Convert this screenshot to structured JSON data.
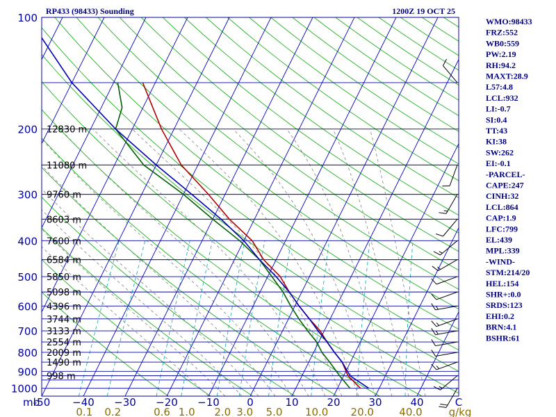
{
  "header": {
    "station": "RP433 (98433) Sounding",
    "time": "1200Z 19 OCT 25"
  },
  "colors": {
    "frame": "#0000a0",
    "isobar": "#0000a0",
    "isotherm": "#0000c0",
    "dry_adiabat": "#20b020",
    "mixing_ratio": "#20b0b0",
    "moist_adiabat": "#808080",
    "temperature": "#b00000",
    "dewpoint": "#006000",
    "parcel": "#0000b0",
    "text": "#000080",
    "mixing_label": "#8a6d00"
  },
  "chart_data": {
    "type": "line",
    "subtype": "skew-t log-p",
    "title": "RP433 (98433) Sounding",
    "subtitle": "1200Z 19 OCT 25",
    "ylabel": "mb",
    "xlabel": "C",
    "ylim": [
      1050,
      100
    ],
    "xlim": [
      -50,
      50
    ],
    "y_scale": "log",
    "pressure_ticks": [
      100,
      200,
      300,
      400,
      500,
      600,
      700,
      800,
      900,
      1000
    ],
    "temp_ticks": [
      -50,
      -40,
      -30,
      -20,
      -10,
      0,
      10,
      20,
      30,
      40
    ],
    "x_tick_labels": [
      "-50",
      "−40",
      "−30",
      "−20",
      "−10",
      "0",
      "10",
      "20",
      "30",
      "40",
      "C"
    ],
    "mixing_ratio_labels": [
      "0.1",
      "0.2",
      "0.6",
      "1.0",
      "2.0",
      "3.0",
      "5.0",
      "10.0",
      "20.0",
      "40.0",
      "g/kg"
    ],
    "height_labels": [
      {
        "p": 200,
        "label": "12830 m"
      },
      {
        "p": 250,
        "label": "11080 m"
      },
      {
        "p": 300,
        "label": "9760 m"
      },
      {
        "p": 350,
        "label": "8603 m"
      },
      {
        "p": 400,
        "label": "7600 m"
      },
      {
        "p": 450,
        "label": "6584 m"
      },
      {
        "p": 500,
        "label": "5850 m"
      },
      {
        "p": 550,
        "label": "5098 m"
      },
      {
        "p": 600,
        "label": "4396 m"
      },
      {
        "p": 650,
        "label": "3744 m"
      },
      {
        "p": 700,
        "label": "3133 m"
      },
      {
        "p": 750,
        "label": "2554 m"
      },
      {
        "p": 800,
        "label": "2009 m"
      },
      {
        "p": 850,
        "label": "1490 m"
      },
      {
        "p": 925,
        "label": "998 m"
      }
    ],
    "series": [
      {
        "name": "Temperature",
        "points": [
          [
            1000,
            25.5
          ],
          [
            925,
            21.0
          ],
          [
            850,
            18.0
          ],
          [
            800,
            15.0
          ],
          [
            750,
            12.0
          ],
          [
            700,
            9.0
          ],
          [
            650,
            5.0
          ],
          [
            600,
            1.0
          ],
          [
            550,
            -3.0
          ],
          [
            500,
            -7.0
          ],
          [
            450,
            -13.0
          ],
          [
            400,
            -18.0
          ],
          [
            350,
            -26.0
          ],
          [
            300,
            -34.0
          ],
          [
            250,
            -44.0
          ],
          [
            200,
            -53.0
          ],
          [
            150,
            -63.0
          ]
        ]
      },
      {
        "name": "Dewpoint",
        "points": [
          [
            1000,
            23.0
          ],
          [
            925,
            19.0
          ],
          [
            850,
            15.0
          ],
          [
            800,
            12.0
          ],
          [
            750,
            9.5
          ],
          [
            700,
            6.0
          ],
          [
            650,
            2.5
          ],
          [
            600,
            -1.0
          ],
          [
            550,
            -4.5
          ],
          [
            500,
            -9.0
          ],
          [
            450,
            -14.0
          ],
          [
            400,
            -21.0
          ],
          [
            350,
            -30.0
          ],
          [
            300,
            -40.0
          ],
          [
            250,
            -53.0
          ],
          [
            200,
            -64.0
          ],
          [
            175,
            -65.0
          ],
          [
            150,
            -69.0
          ]
        ]
      },
      {
        "name": "Parcel",
        "points": [
          [
            1000,
            27.5
          ],
          [
            925,
            21.5
          ],
          [
            850,
            18.0
          ],
          [
            800,
            15.0
          ],
          [
            750,
            12.0
          ],
          [
            700,
            8.5
          ],
          [
            650,
            5.0
          ],
          [
            600,
            1.0
          ],
          [
            550,
            -3.0
          ],
          [
            500,
            -8.0
          ],
          [
            450,
            -14.0
          ],
          [
            400,
            -20.0
          ],
          [
            350,
            -28.0
          ],
          [
            300,
            -38.0
          ],
          [
            250,
            -50.0
          ],
          [
            200,
            -64.0
          ],
          [
            150,
            -80.0
          ],
          [
            110,
            -94.0
          ]
        ]
      }
    ],
    "wind_barbs": [
      {
        "p": 1000,
        "dir": 210,
        "kt": 20
      },
      {
        "p": 925,
        "dir": 230,
        "kt": 15
      },
      {
        "p": 850,
        "dir": 250,
        "kt": 15
      },
      {
        "p": 800,
        "dir": 260,
        "kt": 10
      },
      {
        "p": 750,
        "dir": 260,
        "kt": 10
      },
      {
        "p": 700,
        "dir": 260,
        "kt": 15
      },
      {
        "p": 650,
        "dir": 250,
        "kt": 15
      },
      {
        "p": 600,
        "dir": 260,
        "kt": 15
      },
      {
        "p": 550,
        "dir": 250,
        "kt": 10
      },
      {
        "p": 500,
        "dir": 250,
        "kt": 10
      },
      {
        "p": 450,
        "dir": 240,
        "kt": 15
      },
      {
        "p": 400,
        "dir": 230,
        "kt": 15
      },
      {
        "p": 350,
        "dir": 220,
        "kt": 10
      },
      {
        "p": 300,
        "dir": 210,
        "kt": 15
      },
      {
        "p": 250,
        "dir": 200,
        "kt": 10
      },
      {
        "p": 150,
        "dir": 320,
        "kt": 10
      }
    ]
  },
  "indices": [
    "WMO:98433",
    "FRZ:552",
    "WB0:559",
    "PW:2.19",
    "RH:94.2",
    "MAXT:28.9",
    "L57:4.8",
    "LCL:932",
    "LI:-0.7",
    "SI:0.4",
    "TT:43",
    "KI:38",
    "SW:262",
    "EI:-0.1",
    "-PARCEL-",
    "CAPE:247",
    "CINH:32",
    "LCL:864",
    "CAP:1.9",
    "LFC:799",
    "EL:439",
    "MPL:339",
    "-WIND-",
    "STM:214/20",
    "HEL:154",
    "SHR+:0.0",
    "SRDS:123",
    "EHI:0.2",
    "BRN:4.1",
    "BSHR:61"
  ]
}
